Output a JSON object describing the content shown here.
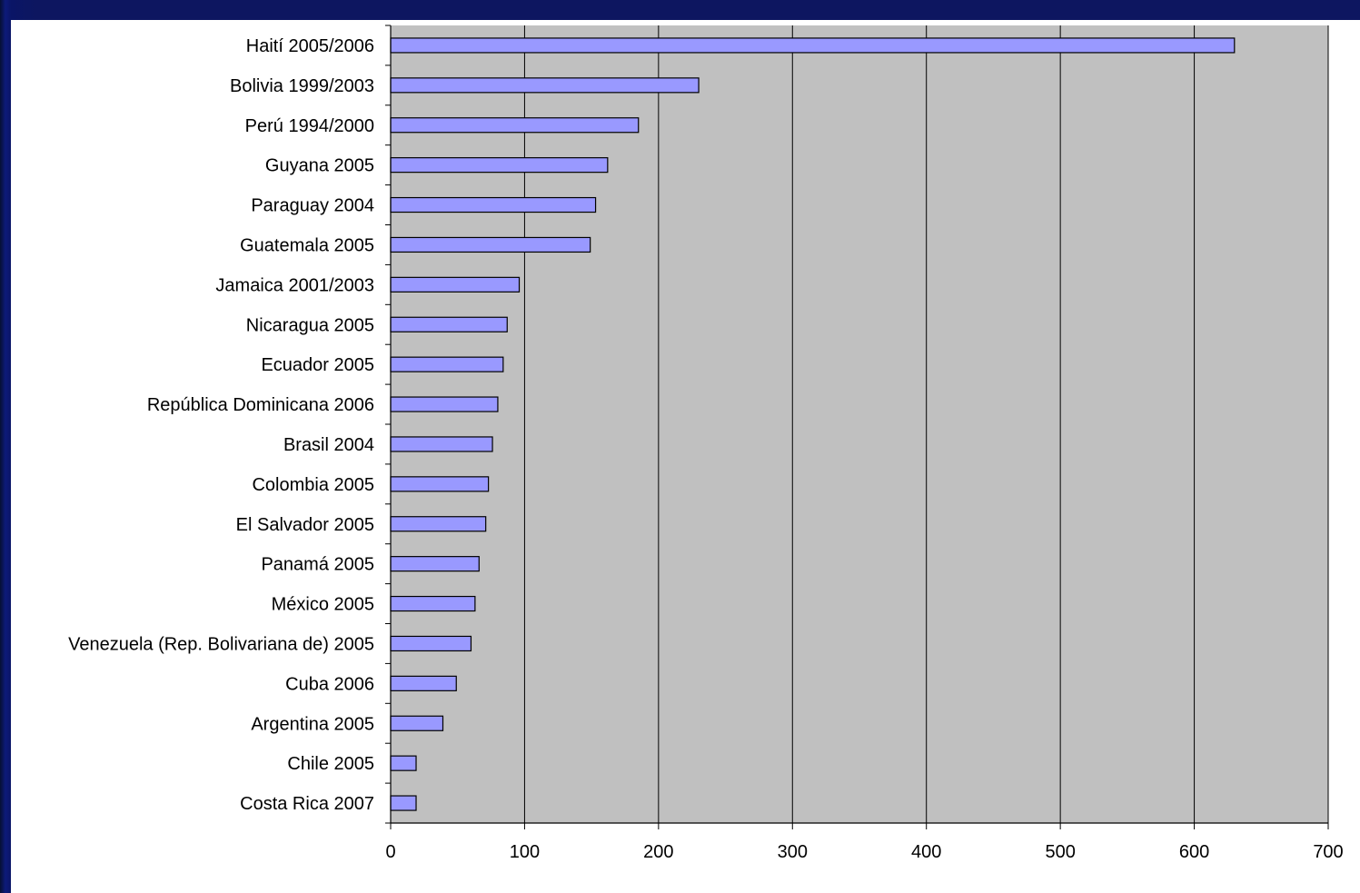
{
  "chart_data": {
    "type": "bar",
    "orientation": "horizontal",
    "title": "",
    "xlabel": "",
    "ylabel": "",
    "categories": [
      "Haití 2005/2006",
      "Bolivia 1999/2003",
      "Perú 1994/2000",
      "Guyana 2005",
      "Paraguay 2004",
      "Guatemala 2005",
      "Jamaica 2001/2003",
      "Nicaragua 2005",
      "Ecuador 2005",
      "República Dominicana 2006",
      "Brasil 2004",
      "Colombia 2005",
      "El Salvador 2005",
      "Panamá 2005",
      "México 2005",
      "Venezuela (Rep. Bolivariana de) 2005",
      "Cuba 2006",
      "Argentina 2005",
      "Chile 2005",
      "Costa Rica 2007"
    ],
    "values": [
      630,
      230,
      185,
      162,
      153,
      149,
      96,
      87,
      84,
      80,
      76,
      73,
      71,
      66,
      63,
      60,
      49,
      39,
      19,
      19
    ],
    "xlim": [
      0,
      700
    ],
    "x_ticks": [
      "0",
      "100",
      "200",
      "300",
      "400",
      "500",
      "600",
      "700"
    ],
    "grid": true,
    "legend": "none",
    "colors": {
      "bar_fill": "#9999ff",
      "bar_stroke": "#000000",
      "plot_background": "#c0c0c0",
      "gridline": "#000000",
      "slide_background": "#0d1660"
    }
  }
}
